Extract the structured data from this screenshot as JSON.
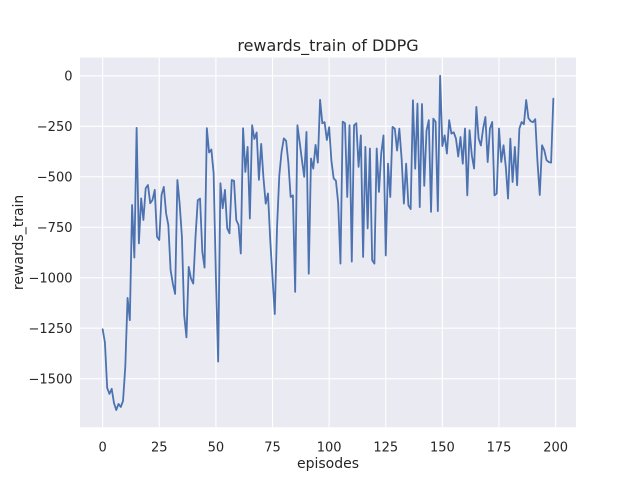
{
  "figure": {
    "background": "#ffffff",
    "plot_background": "#eaeaf2",
    "grid_color": "#ffffff",
    "text_color": "#262626"
  },
  "chart_data": {
    "type": "line",
    "title": "rewards_train of DDPG",
    "xlabel": "episodes",
    "ylabel": "rewards_train",
    "legend": "none",
    "grid": true,
    "x_start": 0,
    "xlim": [
      -10,
      209
    ],
    "ylim": [
      -1740,
      90
    ],
    "xticks": {
      "values": [
        0,
        25,
        50,
        75,
        100,
        125,
        150,
        175,
        200
      ],
      "labels": [
        "0",
        "25",
        "50",
        "75",
        "100",
        "125",
        "150",
        "175",
        "200"
      ]
    },
    "yticks": {
      "values": [
        0,
        -250,
        -500,
        -750,
        -1000,
        -1250,
        -1500
      ],
      "labels": [
        "0",
        "−250",
        "−500",
        "−750",
        "−1000",
        "−1250",
        "−1500"
      ]
    },
    "series": [
      {
        "name": "rewards_train",
        "color": "#4c72b0",
        "line_width": 1.8,
        "values": [
          -1255,
          -1320,
          -1545,
          -1575,
          -1550,
          -1620,
          -1655,
          -1625,
          -1640,
          -1610,
          -1440,
          -1100,
          -1210,
          -640,
          -900,
          -258,
          -830,
          -607,
          -714,
          -557,
          -541,
          -631,
          -615,
          -565,
          -797,
          -813,
          -590,
          -550,
          -680,
          -739,
          -962,
          -1030,
          -1080,
          -516,
          -634,
          -797,
          -1185,
          -1295,
          -946,
          -1004,
          -1029,
          -798,
          -616,
          -608,
          -870,
          -950,
          -259,
          -380,
          -365,
          -483,
          -995,
          -1415,
          -532,
          -656,
          -565,
          -755,
          -780,
          -516,
          -520,
          -714,
          -739,
          -880,
          -260,
          -476,
          -352,
          -707,
          -245,
          -313,
          -281,
          -515,
          -337,
          -505,
          -633,
          -583,
          -814,
          -1000,
          -1180,
          -750,
          -493,
          -377,
          -310,
          -322,
          -430,
          -600,
          -592,
          -1070,
          -245,
          -330,
          -418,
          -500,
          -278,
          -980,
          -410,
          -460,
          -342,
          -430,
          -119,
          -235,
          -230,
          -318,
          -255,
          -420,
          -508,
          -520,
          -631,
          -930,
          -227,
          -235,
          -600,
          -245,
          -920,
          -245,
          -235,
          -451,
          -295,
          -897,
          -352,
          -756,
          -360,
          -913,
          -930,
          -360,
          -575,
          -385,
          -295,
          -890,
          -435,
          -600,
          -253,
          -262,
          -370,
          -262,
          -410,
          -633,
          -435,
          -641,
          -660,
          -121,
          -460,
          -138,
          -650,
          -140,
          -545,
          -272,
          -220,
          -674,
          -212,
          -228,
          -670,
          0,
          -348,
          -295,
          -385,
          -220,
          -286,
          -280,
          -311,
          -400,
          -303,
          -435,
          -261,
          -592,
          -270,
          -394,
          -459,
          -154,
          -311,
          -345,
          -261,
          -204,
          -427,
          -261,
          -229,
          -592,
          -583,
          -261,
          -427,
          -344,
          -451,
          -608,
          -311,
          -526,
          -352,
          -542,
          -261,
          -229,
          -240,
          -120,
          -210,
          -225,
          -230,
          -215,
          -427,
          -590,
          -344,
          -369,
          -418,
          -427,
          -430,
          -113
        ]
      }
    ]
  }
}
